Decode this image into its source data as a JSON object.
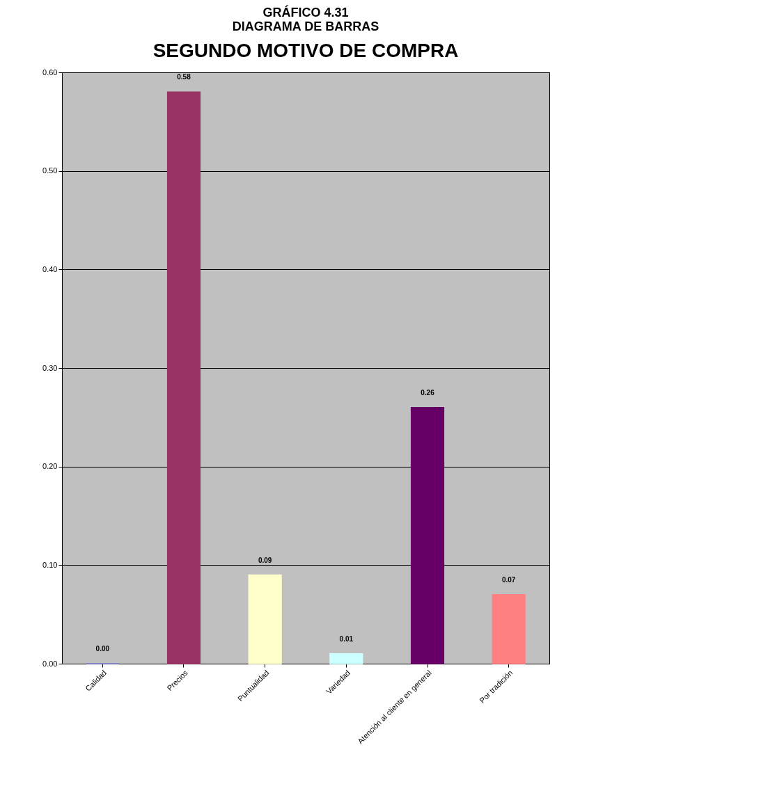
{
  "chart_data": {
    "type": "bar",
    "title": "GRÁFICO 4.31\nDIAGRAMA DE BARRAS",
    "subtitle": "SEGUNDO MOTIVO DE COMPRA",
    "categories": [
      "Calidad",
      "Precios",
      "Puntualidad",
      "Variedad",
      "Atención al cliente en general",
      "Por tradición"
    ],
    "values": [
      0.0,
      0.58,
      0.09,
      0.01,
      0.26,
      0.07
    ],
    "value_labels": [
      "0.00",
      "0.58",
      "0.09",
      "0.01",
      "0.26",
      "0.07"
    ],
    "colors": [
      "#7b7bd1",
      "#993366",
      "#ffffcc",
      "#ccffff",
      "#660066",
      "#ff8080"
    ],
    "ylim": [
      0,
      0.6
    ],
    "yticks": [
      {
        "value": 0,
        "label": "0.00"
      },
      {
        "value": 0.1,
        "label": "0.10"
      },
      {
        "value": 0.2,
        "label": "0.20"
      },
      {
        "value": 0.3,
        "label": "0.30"
      },
      {
        "value": 0.4,
        "label": "0.40"
      },
      {
        "value": 0.5,
        "label": "0.50"
      },
      {
        "value": 0.6,
        "label": "0.60"
      }
    ],
    "grid": "y"
  }
}
